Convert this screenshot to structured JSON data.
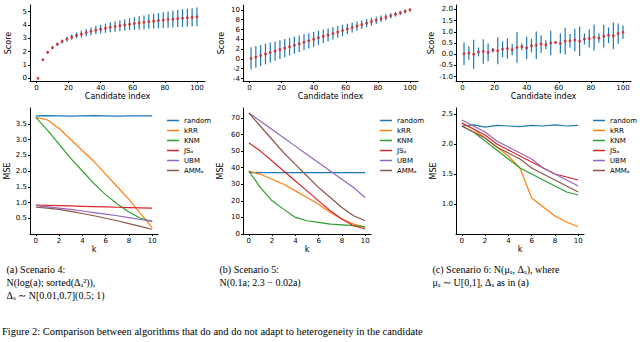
{
  "chart_data": [
    {
      "type": "scatter",
      "xlabel": "Candidate index",
      "ylabel": "Score",
      "color": "#d62728",
      "x": [
        1,
        4,
        7,
        10,
        13,
        16,
        19,
        22,
        25,
        28,
        31,
        34,
        37,
        40,
        43,
        46,
        49,
        52,
        55,
        58,
        61,
        64,
        67,
        70,
        73,
        76,
        79,
        82,
        85,
        88,
        91,
        94,
        97,
        100
      ],
      "values": [
        0,
        1.39,
        1.95,
        2.3,
        2.56,
        2.77,
        2.94,
        3.09,
        3.22,
        3.33,
        3.43,
        3.53,
        3.61,
        3.69,
        3.76,
        3.83,
        3.89,
        3.95,
        4.01,
        4.06,
        4.11,
        4.16,
        4.2,
        4.25,
        4.29,
        4.33,
        4.37,
        4.41,
        4.44,
        4.48,
        4.51,
        4.54,
        4.57,
        4.61
      ],
      "errors": [
        0.02,
        0.05,
        0.08,
        0.1,
        0.13,
        0.15,
        0.18,
        0.2,
        0.22,
        0.25,
        0.27,
        0.29,
        0.31,
        0.33,
        0.35,
        0.37,
        0.39,
        0.41,
        0.43,
        0.45,
        0.47,
        0.49,
        0.51,
        0.53,
        0.55,
        0.57,
        0.59,
        0.61,
        0.63,
        0.65,
        0.66,
        0.67,
        0.68,
        0.7
      ],
      "xlim": [
        -4,
        105
      ],
      "xticks": [
        0,
        20,
        40,
        60,
        80,
        100
      ],
      "ylim": [
        -0.2,
        5.5
      ],
      "yticks": [
        0,
        1,
        2,
        3,
        4,
        5
      ]
    },
    {
      "type": "scatter",
      "xlabel": "Candidate index",
      "ylabel": "Score",
      "color": "#d62728",
      "x": [
        1,
        4,
        7,
        10,
        13,
        16,
        19,
        22,
        25,
        28,
        31,
        34,
        37,
        40,
        43,
        46,
        49,
        52,
        55,
        58,
        61,
        64,
        67,
        70,
        73,
        76,
        79,
        82,
        85,
        88,
        91,
        94,
        97,
        100
      ],
      "values": [
        0.1,
        0.4,
        0.7,
        1.0,
        1.3,
        1.6,
        1.9,
        2.2,
        2.5,
        2.8,
        3.1,
        3.4,
        3.7,
        4.0,
        4.3,
        4.6,
        4.9,
        5.2,
        5.5,
        5.8,
        6.1,
        6.4,
        6.7,
        7.0,
        7.3,
        7.6,
        7.9,
        8.2,
        8.5,
        8.8,
        9.1,
        9.4,
        9.7,
        10.0
      ],
      "errors": [
        2.28,
        2.22,
        2.16,
        2.1,
        2.04,
        1.98,
        1.92,
        1.86,
        1.8,
        1.74,
        1.68,
        1.62,
        1.56,
        1.5,
        1.44,
        1.38,
        1.32,
        1.26,
        1.2,
        1.14,
        1.08,
        1.02,
        0.96,
        0.9,
        0.84,
        0.78,
        0.72,
        0.66,
        0.6,
        0.54,
        0.48,
        0.42,
        0.36,
        0.3
      ],
      "xlim": [
        -4,
        105
      ],
      "xticks": [
        0,
        20,
        40,
        60,
        80,
        100
      ],
      "ylim": [
        -4.5,
        11
      ],
      "yticks": [
        -4,
        -2,
        0,
        2,
        4,
        6,
        8,
        10
      ]
    },
    {
      "type": "scatter",
      "xlabel": "Candidate index",
      "ylabel": "Score",
      "color": "#d62728",
      "x": [
        1,
        4,
        7,
        10,
        13,
        16,
        19,
        22,
        25,
        28,
        31,
        34,
        37,
        40,
        43,
        46,
        49,
        52,
        55,
        58,
        61,
        64,
        67,
        70,
        73,
        76,
        79,
        82,
        85,
        88,
        91,
        94,
        97,
        100
      ],
      "values": [
        0.02,
        0.05,
        0.0,
        0.1,
        0.12,
        0.08,
        0.18,
        0.15,
        0.22,
        0.25,
        0.2,
        0.3,
        0.33,
        0.28,
        0.38,
        0.4,
        0.45,
        0.42,
        0.5,
        0.52,
        0.48,
        0.58,
        0.6,
        0.63,
        0.58,
        0.68,
        0.7,
        0.75,
        0.72,
        0.8,
        0.85,
        0.82,
        0.92,
        0.98
      ],
      "errors": [
        0.5,
        0.3,
        0.65,
        0.2,
        0.55,
        0.4,
        0.1,
        0.6,
        0.35,
        0.45,
        0.25,
        0.68,
        0.15,
        0.5,
        0.3,
        0.62,
        0.4,
        0.2,
        0.55,
        0.05,
        0.45,
        0.6,
        0.3,
        0.5,
        0.66,
        0.25,
        0.4,
        0.58,
        0.2,
        0.5,
        0.35,
        0.6,
        0.45,
        0.3
      ],
      "xlim": [
        -4,
        105
      ],
      "xticks": [
        0,
        20,
        40,
        60,
        80,
        100
      ],
      "ylim": [
        -1.2,
        2.2
      ],
      "yticks": [
        {
          "value": -1,
          "label": "-1.0"
        },
        {
          "value": -0.5,
          "label": "-0.5"
        },
        {
          "value": 0,
          "label": "0.0"
        },
        {
          "value": 0.5,
          "label": "0.5"
        },
        {
          "value": 1,
          "label": "1.0"
        },
        {
          "value": 1.5,
          "label": "1.5"
        },
        {
          "value": 2,
          "label": "2.0"
        }
      ]
    },
    {
      "type": "line",
      "xlabel": "k",
      "ylabel": "MSE",
      "legend": "right",
      "x": [
        0,
        1,
        2,
        3,
        4,
        5,
        6,
        7,
        8,
        9,
        10
      ],
      "series": [
        {
          "name": "random",
          "color": "#1f77b4",
          "values": [
            3.75,
            3.76,
            3.75,
            3.74,
            3.75,
            3.76,
            3.75,
            3.74,
            3.75,
            3.75,
            3.75
          ]
        },
        {
          "name": "kRR",
          "color": "#ff7f0e",
          "values": [
            3.7,
            3.62,
            3.35,
            3.0,
            2.65,
            2.3,
            1.9,
            1.5,
            1.1,
            0.65,
            0.2
          ]
        },
        {
          "name": "KNM",
          "color": "#2ca02c",
          "values": [
            3.7,
            3.3,
            2.85,
            2.4,
            2.0,
            1.6,
            1.25,
            0.95,
            0.7,
            0.5,
            0.4
          ]
        },
        {
          "name": "JSₐ",
          "color": "#d62728",
          "values": [
            0.92,
            0.91,
            0.9,
            0.89,
            0.88,
            0.87,
            0.86,
            0.85,
            0.84,
            0.83,
            0.82
          ]
        },
        {
          "name": "UBM",
          "color": "#9467bd",
          "values": [
            0.9,
            0.86,
            0.82,
            0.78,
            0.73,
            0.68,
            0.63,
            0.58,
            0.52,
            0.46,
            0.4
          ]
        },
        {
          "name": "AMMₐ",
          "color": "#8c564b",
          "values": [
            0.85,
            0.82,
            0.78,
            0.72,
            0.65,
            0.58,
            0.5,
            0.42,
            0.33,
            0.24,
            0.15
          ]
        }
      ],
      "xlim": [
        -0.5,
        10.5
      ],
      "xticks": [
        0,
        2,
        4,
        6,
        8,
        10
      ],
      "ylim": [
        0,
        4
      ],
      "yticks": [
        {
          "value": 0.5,
          "label": "0.5"
        },
        {
          "value": 1,
          "label": "1.0"
        },
        {
          "value": 1.5,
          "label": "1.5"
        },
        {
          "value": 2,
          "label": "2.0"
        },
        {
          "value": 2.5,
          "label": "2.5"
        },
        {
          "value": 3,
          "label": "3.0"
        },
        {
          "value": 3.5,
          "label": "3.5"
        }
      ]
    },
    {
      "type": "line",
      "xlabel": "k",
      "ylabel": "MSE",
      "legend": "right",
      "x": [
        0,
        1,
        2,
        3,
        4,
        5,
        6,
        7,
        8,
        9,
        10
      ],
      "series": [
        {
          "name": "random",
          "color": "#1f77b4",
          "values": [
            37,
            37,
            37,
            37,
            37,
            37,
            37,
            37,
            37,
            37,
            37
          ]
        },
        {
          "name": "kRR",
          "color": "#ff7f0e",
          "values": [
            38,
            36,
            33,
            30,
            26,
            22,
            18,
            13,
            9,
            6,
            4
          ]
        },
        {
          "name": "KNM",
          "color": "#2ca02c",
          "values": [
            38,
            28,
            20,
            15,
            10,
            8,
            7,
            6,
            5.5,
            5,
            4.5
          ]
        },
        {
          "name": "JSₐ",
          "color": "#d62728",
          "values": [
            55,
            50,
            44,
            38,
            32,
            26,
            20,
            14,
            9,
            5,
            3
          ]
        },
        {
          "name": "UBM",
          "color": "#9467bd",
          "values": [
            73,
            68,
            63,
            58,
            53,
            48,
            43,
            38,
            33,
            28,
            22
          ]
        },
        {
          "name": "AMMₐ",
          "color": "#8c564b",
          "values": [
            73,
            65,
            57,
            49,
            42,
            35,
            28,
            22,
            16,
            11,
            8
          ]
        }
      ],
      "xlim": [
        -0.5,
        10.5
      ],
      "xticks": [
        0,
        2,
        4,
        6,
        8,
        10
      ],
      "ylim": [
        0,
        76
      ],
      "yticks": [
        0,
        10,
        20,
        30,
        40,
        50,
        60,
        70
      ]
    },
    {
      "type": "line",
      "xlabel": "k",
      "ylabel": "MSE",
      "legend": "right",
      "x": [
        0,
        1,
        2,
        3,
        4,
        5,
        6,
        7,
        8,
        9,
        10
      ],
      "series": [
        {
          "name": "random",
          "color": "#1f77b4",
          "values": [
            2.3,
            2.32,
            2.28,
            2.31,
            2.3,
            2.29,
            2.31,
            2.3,
            2.32,
            2.3,
            2.31
          ]
        },
        {
          "name": "kRR",
          "color": "#ff7f0e",
          "values": [
            2.35,
            2.25,
            2.1,
            1.95,
            1.8,
            1.6,
            1.1,
            0.95,
            0.8,
            0.7,
            0.62
          ]
        },
        {
          "name": "KNM",
          "color": "#2ca02c",
          "values": [
            2.3,
            2.2,
            2.05,
            1.9,
            1.75,
            1.6,
            1.5,
            1.4,
            1.3,
            1.2,
            1.15
          ]
        },
        {
          "name": "JSₐ",
          "color": "#d62728",
          "values": [
            2.35,
            2.25,
            2.15,
            2.0,
            1.9,
            1.8,
            1.7,
            1.6,
            1.5,
            1.45,
            1.4
          ]
        },
        {
          "name": "UBM",
          "color": "#9467bd",
          "values": [
            2.4,
            2.3,
            2.2,
            2.05,
            1.95,
            1.85,
            1.75,
            1.6,
            1.5,
            1.4,
            1.3
          ]
        },
        {
          "name": "AMMₐ",
          "color": "#8c564b",
          "values": [
            2.3,
            2.2,
            2.1,
            1.95,
            1.85,
            1.75,
            1.6,
            1.5,
            1.4,
            1.3,
            1.2
          ]
        }
      ],
      "xlim": [
        -0.5,
        10.5
      ],
      "xticks": [
        0,
        2,
        4,
        6,
        8,
        10
      ],
      "ylim": [
        0.5,
        2.6
      ],
      "yticks": [
        {
          "value": 1,
          "label": "1.0"
        },
        {
          "value": 1.5,
          "label": "1.5"
        },
        {
          "value": 2,
          "label": "2.0"
        },
        {
          "value": 2.5,
          "label": "2.5"
        }
      ]
    }
  ],
  "captions": [
    [
      "(a) Scenario 4:",
      "N(log(a); sorted(Δₐ²)),",
      "Δₐ ∼ N[0.01,0.7](0.5; 1)"
    ],
    [
      "(b) Scenario 5:",
      "N(0.1a; 2.3 − 0.02a)"
    ],
    [
      "(c) Scenario 6: N(μₐ, Δₐ), where",
      "μₐ ∼ U[0,1], Δₐ as in (a)"
    ]
  ],
  "figure_caption": "Figure 2: Comparison between algorithms that do and do not adapt to heterogeneity in the candidate"
}
